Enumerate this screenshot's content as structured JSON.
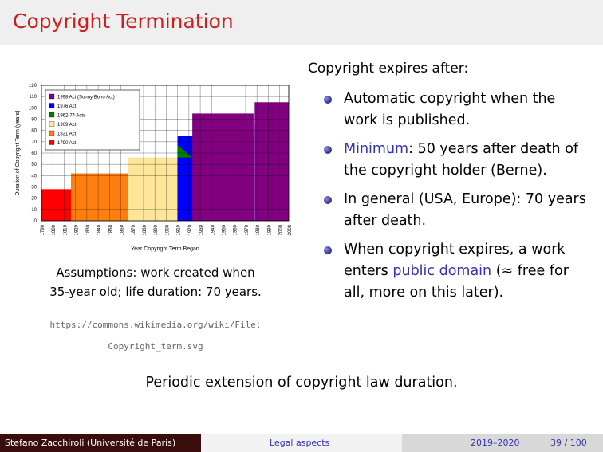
{
  "slide": {
    "title": "Copyright Termination",
    "caption_line1": "Assumptions: work created when",
    "caption_line2": "35-year old; life duration: 70 years.",
    "source_line1": "https://commons.wikimedia.org/wiki/File:",
    "source_line2": "Copyright_term.svg",
    "right_heading": "Copyright expires after:",
    "bullets": {
      "b1": "Automatic copyright when the work is published.",
      "b2_highlight": "Minimum",
      "b2_rest": ": 50 years after death of the copyright holder (Berne).",
      "b3": "In general (USA, Europe): 70 years after death.",
      "b4_pre": "When copyright expires, a work enters ",
      "b4_highlight": "public domain",
      "b4_post": " (≈ free for all, more on this later)."
    },
    "summary": "Periodic extension of copyright law duration."
  },
  "footer": {
    "author": "Stefano Zacchiroli (Université de Paris)",
    "section": "Legal aspects",
    "year": "2019–2020",
    "page": "39 / 100"
  },
  "colors": {
    "title_red": "#cc1f1f",
    "highlight_blue": "#3333b2",
    "footer_dark": "#3a0d0d"
  },
  "chart_data": {
    "type": "area",
    "xlabel": "Year Copyright Term Began",
    "ylabel": "Duration of Copyright Term (years)",
    "xlim": [
      1790,
      2008
    ],
    "ylim": [
      0,
      120
    ],
    "x_ticks": [
      "1790",
      "1800",
      "1810",
      "1820",
      "1830",
      "1840",
      "1850",
      "1860",
      "1870",
      "1880",
      "1890",
      "1900",
      "1910",
      "1920",
      "1930",
      "1940",
      "1950",
      "1960",
      "1970",
      "1980",
      "1990",
      "2000",
      "2008"
    ],
    "y_ticks": [
      0,
      10,
      20,
      30,
      40,
      50,
      60,
      70,
      80,
      90,
      100,
      110,
      120
    ],
    "grid": true,
    "legend_position": "top-left",
    "series": [
      {
        "name": "1998 Act (Sonny Bono Act)",
        "color": "#800080",
        "regions": [
          [
            1923,
            1977,
            95
          ],
          [
            1978,
            2008,
            105
          ]
        ]
      },
      {
        "name": "1976 Act",
        "color": "#0000ff",
        "regions": [
          [
            1910,
            1977,
            75
          ],
          [
            1978,
            1998,
            85
          ]
        ]
      },
      {
        "name": "1962-74 Acts",
        "color": "#008000",
        "regions": [
          [
            1910,
            1924,
            57
          ]
        ]
      },
      {
        "name": "1909 Act",
        "color": "#fde69a",
        "regions": [
          [
            1866,
            1977,
            56
          ]
        ]
      },
      {
        "name": "1831 Act",
        "color": "#ff7f0e",
        "regions": [
          [
            1816,
            1910,
            42
          ]
        ]
      },
      {
        "name": "1790 Act",
        "color": "#ff0000",
        "regions": [
          [
            1790,
            1831,
            28
          ]
        ]
      }
    ]
  }
}
